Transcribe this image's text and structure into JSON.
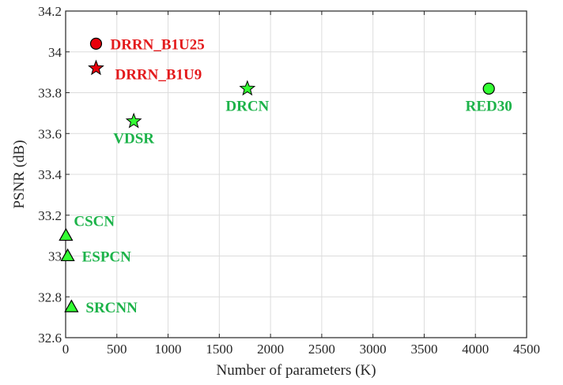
{
  "chart_data": {
    "type": "scatter",
    "xlabel": "Number of parameters (K)",
    "ylabel": "PSNR (dB)",
    "xlim": [
      0,
      4500
    ],
    "ylim": [
      32.6,
      34.2
    ],
    "xticks": [
      0,
      500,
      1000,
      1500,
      2000,
      2500,
      3000,
      3500,
      4000,
      4500
    ],
    "yticks": [
      32.6,
      32.8,
      33,
      33.2,
      33.4,
      33.6,
      33.8,
      34,
      34.2
    ],
    "xtick_labels": [
      "0",
      "500",
      "1000",
      "1500",
      "2000",
      "2500",
      "3000",
      "3500",
      "4000",
      "4500"
    ],
    "ytick_labels": [
      "32.6",
      "32.8",
      "33",
      "33.2",
      "33.4",
      "33.6",
      "33.8",
      "34",
      "34.2"
    ],
    "grid": true,
    "colors": {
      "ours": "#e31a1c",
      "others": "#1db34a",
      "marker_ours": "#e8000b",
      "marker_others": "#33ff33"
    },
    "points": [
      {
        "name": "DRRN_B1U25",
        "x": 297,
        "y": 34.04,
        "marker": "circle",
        "group": "ours",
        "label_pos": "right"
      },
      {
        "name": "DRRN_B1U9",
        "x": 297,
        "y": 33.92,
        "marker": "star",
        "group": "ours",
        "label_pos": "lower-right"
      },
      {
        "name": "DRCN",
        "x": 1774,
        "y": 33.82,
        "marker": "star",
        "group": "others",
        "label_pos": "below"
      },
      {
        "name": "RED30",
        "x": 4131,
        "y": 33.82,
        "marker": "circle",
        "group": "others",
        "label_pos": "below"
      },
      {
        "name": "VDSR",
        "x": 665,
        "y": 33.66,
        "marker": "star",
        "group": "others",
        "label_pos": "below"
      },
      {
        "name": "CSCN",
        "x": 3,
        "y": 33.1,
        "marker": "triangle",
        "group": "others",
        "label_pos": "upper-right"
      },
      {
        "name": "ESPCN",
        "x": 20,
        "y": 33.0,
        "marker": "triangle",
        "group": "others",
        "label_pos": "right"
      },
      {
        "name": "SRCNN",
        "x": 57,
        "y": 32.75,
        "marker": "triangle",
        "group": "others",
        "label_pos": "right"
      }
    ]
  }
}
